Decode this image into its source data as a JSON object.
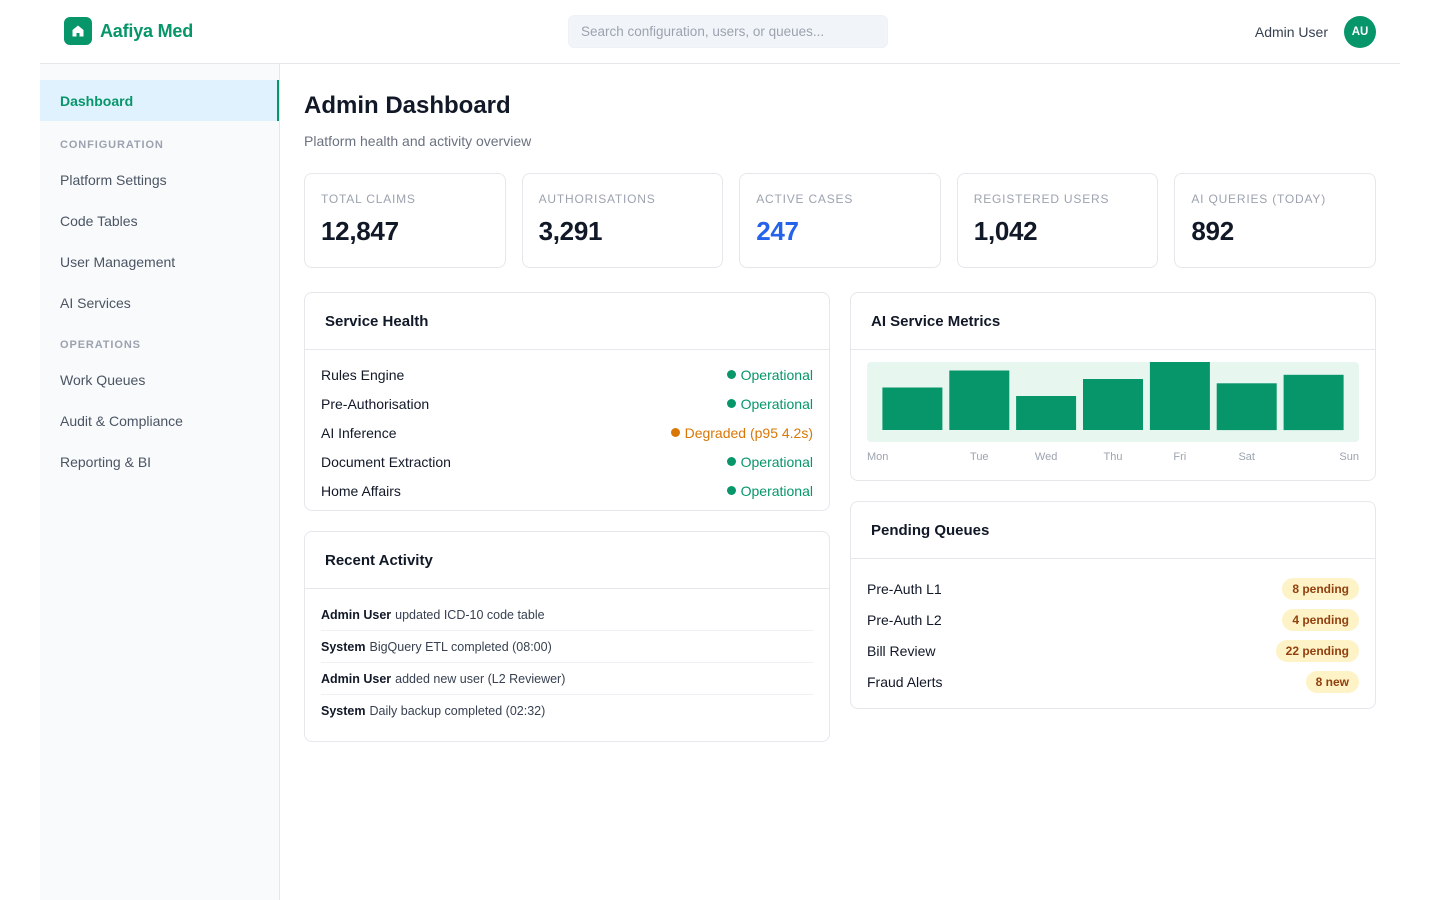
{
  "header": {
    "brand": "Aafiya Med",
    "search_placeholder": "Search configuration, users, or queues...",
    "user_name": "Admin User",
    "user_initials": "AU"
  },
  "sidebar": {
    "dashboard": "Dashboard",
    "section_configuration": "CONFIGURATION",
    "config_items": [
      "Platform Settings",
      "Code Tables",
      "User Management",
      "AI Services"
    ],
    "section_operations": "OPERATIONS",
    "ops_items": [
      "Work Queues",
      "Audit & Compliance",
      "Reporting & BI"
    ]
  },
  "page": {
    "title": "Admin Dashboard",
    "subtitle": "Platform health and activity overview"
  },
  "stats": [
    {
      "label": "TOTAL CLAIMS",
      "value": "12,847"
    },
    {
      "label": "AUTHORISATIONS",
      "value": "3,291"
    },
    {
      "label": "ACTIVE CASES",
      "value": "247"
    },
    {
      "label": "REGISTERED USERS",
      "value": "1,042"
    },
    {
      "label": "AI QUERIES (TODAY)",
      "value": "892"
    }
  ],
  "service_health": {
    "title": "Service Health",
    "rows": [
      {
        "name": "Rules Engine",
        "status": "Operational",
        "color": "#079669"
      },
      {
        "name": "Pre-Authorisation",
        "status": "Operational",
        "color": "#079669"
      },
      {
        "name": "AI Inference",
        "status": "Degraded (p95 4.2s)",
        "color": "#d97706"
      },
      {
        "name": "Document Extraction",
        "status": "Operational",
        "color": "#079669"
      },
      {
        "name": "Home Affairs",
        "status": "Operational",
        "color": "#079669"
      }
    ]
  },
  "activity": {
    "title": "Recent Activity",
    "rows": [
      {
        "who": "Admin User",
        "what": "updated ICD-10 code table"
      },
      {
        "who": "System",
        "what": "BigQuery ETL completed (08:00)"
      },
      {
        "who": "Admin User",
        "what": "added new user (L2 Reviewer)"
      },
      {
        "who": "System",
        "what": "Daily backup completed (02:32)"
      }
    ]
  },
  "metrics": {
    "title": "AI Service Metrics"
  },
  "chart_data": {
    "type": "bar",
    "categories": [
      "Mon",
      "Tue",
      "Wed",
      "Thu",
      "Fri",
      "Sat",
      "Sun"
    ],
    "values": [
      50,
      70,
      40,
      60,
      80,
      55,
      65
    ],
    "ylim": [
      0,
      80
    ],
    "grid": false,
    "bar_color": "#079669"
  },
  "queues": {
    "title": "Pending Queues",
    "rows": [
      {
        "name": "Pre-Auth L1",
        "badge": "8 pending"
      },
      {
        "name": "Pre-Auth L2",
        "badge": "4 pending"
      },
      {
        "name": "Bill Review",
        "badge": "22 pending"
      },
      {
        "name": "Fraud Alerts",
        "badge": "8 new"
      }
    ]
  },
  "colors": {
    "brand": "#079669",
    "accent_value": "#2563eb",
    "warning": "#d97706"
  }
}
